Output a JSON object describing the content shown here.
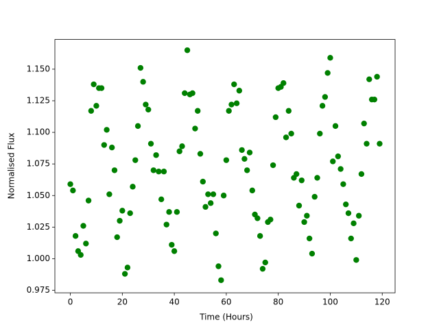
{
  "chart_data": {
    "type": "scatter",
    "x_label": "Time (Hours)",
    "y_label": "Normalised Flux",
    "color": "#008000",
    "x": [
      0,
      1,
      2,
      3,
      4,
      5,
      6,
      7,
      8,
      9,
      10,
      11,
      12,
      13,
      14,
      15,
      16,
      17,
      18,
      19,
      20,
      21,
      22,
      23,
      24,
      25,
      26,
      27,
      28,
      29,
      30,
      31,
      32,
      33,
      34,
      35,
      36,
      37,
      38,
      39,
      40,
      41,
      42,
      43,
      44,
      45,
      46,
      47,
      48,
      49,
      50,
      51,
      52,
      53,
      54,
      55,
      56,
      57,
      58,
      59,
      60,
      61,
      62,
      63,
      64,
      65,
      66,
      67,
      68,
      69,
      70,
      71,
      72,
      73,
      74,
      75,
      76,
      77,
      78,
      79,
      80,
      81,
      82,
      83,
      84,
      85,
      86,
      87,
      88,
      89,
      90,
      91,
      92,
      93,
      94,
      95,
      96,
      97,
      98,
      99,
      100,
      101,
      102,
      103,
      104,
      105,
      106,
      107,
      108,
      109,
      110,
      111,
      112,
      113,
      114,
      115,
      116,
      117,
      118,
      119
    ],
    "values": [
      1.059,
      1.054,
      1.018,
      1.006,
      1.003,
      1.026,
      1.012,
      1.046,
      1.117,
      1.138,
      1.121,
      1.135,
      1.135,
      1.09,
      1.102,
      1.051,
      1.088,
      1.07,
      1.017,
      1.03,
      1.038,
      0.988,
      0.993,
      1.036,
      1.057,
      1.078,
      1.105,
      1.151,
      1.14,
      1.122,
      1.118,
      1.091,
      1.07,
      1.082,
      1.069,
      1.047,
      1.069,
      1.027,
      1.037,
      1.011,
      1.006,
      1.037,
      1.085,
      1.089,
      1.131,
      1.165,
      1.13,
      1.131,
      1.103,
      1.117,
      1.083,
      1.061,
      1.041,
      1.051,
      1.044,
      1.051,
      1.02,
      0.994,
      0.983,
      1.05,
      1.078,
      1.117,
      1.122,
      1.138,
      1.123,
      1.133,
      1.086,
      1.079,
      1.07,
      1.084,
      1.054,
      1.035,
      1.032,
      1.018,
      0.992,
      0.997,
      1.029,
      1.031,
      1.074,
      1.112,
      1.135,
      1.136,
      1.139,
      1.096,
      1.117,
      1.099,
      1.064,
      1.067,
      1.042,
      1.062,
      1.029,
      1.034,
      1.016,
      1.004,
      1.049,
      1.064,
      1.099,
      1.121,
      1.128,
      1.147,
      1.159,
      1.077,
      1.105,
      1.081,
      1.071,
      1.059,
      1.043,
      1.036,
      1.016,
      1.028,
      0.999,
      1.034,
      1.067,
      1.107,
      1.091,
      1.142,
      1.126,
      1.126,
      1.144,
      1.091
    ],
    "xlim": [
      -5.95,
      124.95
    ],
    "ylim": [
      0.973,
      1.1735
    ],
    "xticks": [
      0,
      20,
      40,
      60,
      80,
      100,
      120
    ],
    "yticks": [
      0.975,
      {
        "value": 1,
        "label": "1.000"
      },
      1.025,
      {
        "value": 1.05,
        "label": "1.050"
      },
      1.075,
      {
        "value": 1.1,
        "label": "1.100"
      },
      1.125,
      {
        "value": 1.15,
        "label": "1.150"
      }
    ],
    "grid": false
  }
}
